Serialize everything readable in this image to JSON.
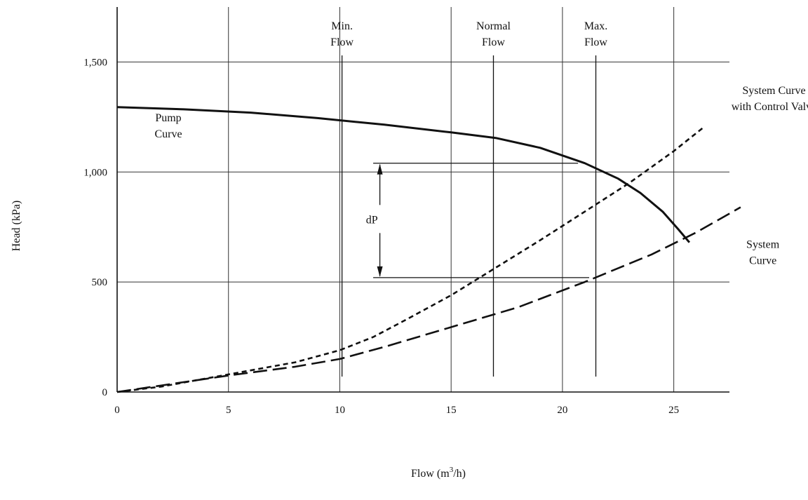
{
  "chart_data": {
    "type": "line",
    "title": "",
    "xlabel_main": "Flow (m",
    "xlabel_sup": "3",
    "xlabel_tail": "/h)",
    "ylabel": "Head (kPa)",
    "xlim": [
      0,
      27.5
    ],
    "ylim": [
      0,
      1750
    ],
    "x_ticks": [
      0,
      5,
      10,
      15,
      20,
      25
    ],
    "x_tick_labels": [
      "0",
      "5",
      "10",
      "15",
      "20",
      "25"
    ],
    "y_ticks": [
      0,
      500,
      1000,
      1500
    ],
    "y_tick_labels": [
      "0",
      "500",
      "1,000",
      "1,500"
    ],
    "grid": true,
    "series": [
      {
        "name": "Pump Curve",
        "style": "solid",
        "x": [
          0,
          3,
          6,
          9,
          12,
          15,
          17,
          19,
          21,
          22.5,
          23.5,
          24.5,
          25.2,
          25.7
        ],
        "y": [
          1295,
          1285,
          1270,
          1245,
          1215,
          1180,
          1155,
          1110,
          1040,
          970,
          905,
          820,
          740,
          680
        ]
      },
      {
        "name": "System Curve with Control Valve",
        "style": "short-dash",
        "x": [
          0,
          2,
          5,
          8,
          10,
          11.5,
          13,
          15,
          17,
          19,
          21,
          23,
          25,
          26.3
        ],
        "y": [
          0,
          25,
          80,
          135,
          190,
          250,
          330,
          440,
          565,
          690,
          820,
          950,
          1095,
          1200
        ]
      },
      {
        "name": "System Curve",
        "style": "long-dash",
        "x": [
          0,
          2,
          5,
          8,
          10,
          12,
          15,
          18,
          21,
          24,
          26,
          28
        ],
        "y": [
          0,
          30,
          75,
          115,
          150,
          205,
          295,
          385,
          500,
          625,
          725,
          840
        ]
      }
    ],
    "reference_lines": [
      {
        "label_lines": [
          "Min.",
          "Flow"
        ],
        "x": 10.1
      },
      {
        "label_lines": [
          "Normal",
          "Flow"
        ],
        "x": 16.9
      },
      {
        "label_lines": [
          "Max.",
          "Flow"
        ],
        "x": 21.5
      }
    ],
    "dp": {
      "label": "dP",
      "x_left": 11.5,
      "x_arrow": 11.8,
      "top_y": 1040,
      "top_x_end": 20.7,
      "bottom_y": 520,
      "bottom_x_end": 21.2
    },
    "annotations": [
      {
        "lines": [
          "Pump",
          "Curve"
        ],
        "x": 2.3,
        "y": 1230
      },
      {
        "lines": [
          "System Curve",
          "with Control Valve"
        ],
        "x": 29.5,
        "y": 1355
      },
      {
        "lines": [
          "System",
          "Curve"
        ],
        "x": 29.0,
        "y": 655
      }
    ]
  }
}
